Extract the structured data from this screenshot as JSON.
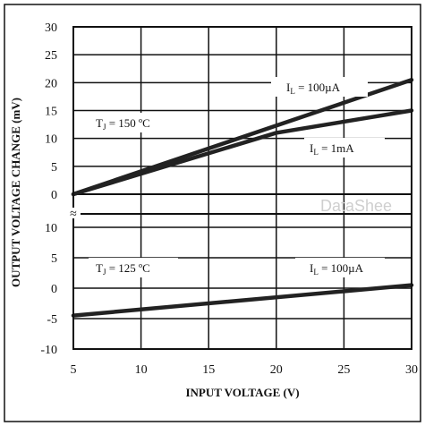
{
  "chart_data": [
    {
      "panel": "upper",
      "type": "line",
      "xlim": [
        5,
        30
      ],
      "ylim": [
        0,
        30
      ],
      "yticks": [
        "0",
        "5",
        "10",
        "15",
        "20",
        "25",
        "30"
      ],
      "annotation": {
        "prefix": "T",
        "sub": "J",
        "suffix": " = 150 ºC"
      },
      "series": [
        {
          "label": {
            "prefix": "I",
            "sub": "L",
            "suffix": " = 100µA"
          },
          "x": [
            5,
            30
          ],
          "y": [
            0,
            20.5
          ]
        },
        {
          "label": {
            "prefix": "I",
            "sub": "L",
            "suffix": " = 1mA"
          },
          "x": [
            5,
            20,
            30
          ],
          "y": [
            0,
            11,
            15
          ]
        }
      ]
    },
    {
      "panel": "lower",
      "type": "line",
      "xlim": [
        5,
        30
      ],
      "ylim": [
        -10,
        10
      ],
      "yticks": [
        "-10",
        "-5",
        "0",
        "5",
        "10"
      ],
      "annotation": {
        "prefix": "T",
        "sub": "J",
        "suffix": " = 125 ºC"
      },
      "series": [
        {
          "label": {
            "prefix": "I",
            "sub": "L",
            "suffix": " = 100µA"
          },
          "x": [
            5,
            30
          ],
          "y": [
            -4.5,
            0.5
          ]
        }
      ]
    }
  ],
  "xticks": [
    "5",
    "10",
    "15",
    "20",
    "25",
    "30"
  ],
  "xlabel": "INPUT VOLTAGE (V)",
  "ylabel": "OUTPUT VOLTAGE CHANGE (mV)",
  "break_marker": "≈",
  "watermark": "DataShee",
  "colors": {
    "line": "#222222",
    "grid": "#111111",
    "watermark": "#cfcfcf"
  }
}
